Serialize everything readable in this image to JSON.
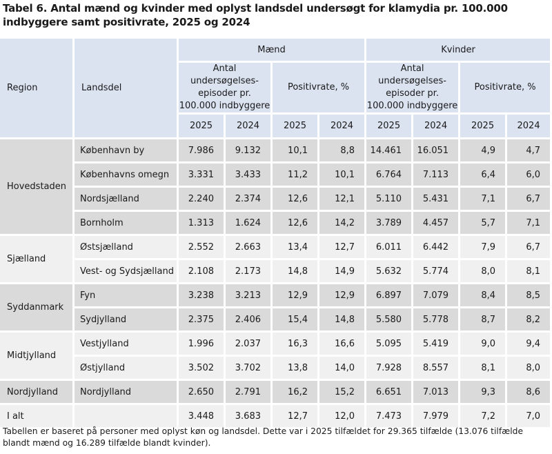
{
  "title": "Tabel 6. Antal mænd og kvinder med oplyst landsdel undersøgt for klamydia pr. 100.000 indbyggere samt positivrate, 2025 og 2024",
  "headers": {
    "region": "Region",
    "landsdel": "Landsdel",
    "maend": "Mænd",
    "kvinder": "Kvinder",
    "antal": "Antal undersøgelses-episoder pr. 100.000 indbyggere",
    "positivrate": "Positivrate, %",
    "y2025": "2025",
    "y2024": "2024"
  },
  "groups": [
    {
      "region": "Hovedstaden",
      "rows": [
        {
          "landsdel": "København by",
          "m_u25": "7.986",
          "m_u24": "9.132",
          "m_p25": "10,1",
          "m_p24": "8,8",
          "k_u25": "14.461",
          "k_u24": "16.051",
          "k_p25": "4,9",
          "k_p24": "4,7"
        },
        {
          "landsdel": "Københavns omegn",
          "m_u25": "3.331",
          "m_u24": "3.433",
          "m_p25": "11,2",
          "m_p24": "10,1",
          "k_u25": "6.764",
          "k_u24": "7.113",
          "k_p25": "6,4",
          "k_p24": "6,0"
        },
        {
          "landsdel": "Nordsjælland",
          "m_u25": "2.240",
          "m_u24": "2.374",
          "m_p25": "12,6",
          "m_p24": "12,1",
          "k_u25": "5.110",
          "k_u24": "5.431",
          "k_p25": "7,1",
          "k_p24": "6,7"
        },
        {
          "landsdel": "Bornholm",
          "m_u25": "1.313",
          "m_u24": "1.624",
          "m_p25": "12,6",
          "m_p24": "14,2",
          "k_u25": "3.789",
          "k_u24": "4.457",
          "k_p25": "5,7",
          "k_p24": "7,1"
        }
      ]
    },
    {
      "region": "Sjælland",
      "rows": [
        {
          "landsdel": "Østsjælland",
          "m_u25": "2.552",
          "m_u24": "2.663",
          "m_p25": "13,4",
          "m_p24": "12,7",
          "k_u25": "6.011",
          "k_u24": "6.442",
          "k_p25": "7,9",
          "k_p24": "6,7"
        },
        {
          "landsdel": "Vest- og Sydsjælland",
          "m_u25": "2.108",
          "m_u24": "2.173",
          "m_p25": "14,8",
          "m_p24": "14,9",
          "k_u25": "5.632",
          "k_u24": "5.774",
          "k_p25": "8,0",
          "k_p24": "8,1"
        }
      ]
    },
    {
      "region": "Syddanmark",
      "rows": [
        {
          "landsdel": "Fyn",
          "m_u25": "3.238",
          "m_u24": "3.213",
          "m_p25": "12,9",
          "m_p24": "12,9",
          "k_u25": "6.897",
          "k_u24": "7.079",
          "k_p25": "8,4",
          "k_p24": "8,5"
        },
        {
          "landsdel": "Sydjylland",
          "m_u25": "2.375",
          "m_u24": "2.406",
          "m_p25": "15,4",
          "m_p24": "14,8",
          "k_u25": "5.580",
          "k_u24": "5.778",
          "k_p25": "8,7",
          "k_p24": "8,2"
        }
      ]
    },
    {
      "region": "Midtjylland",
      "rows": [
        {
          "landsdel": "Vestjylland",
          "m_u25": "1.996",
          "m_u24": "2.037",
          "m_p25": "16,3",
          "m_p24": "16,6",
          "k_u25": "5.095",
          "k_u24": "5.419",
          "k_p25": "9,0",
          "k_p24": "9,4"
        },
        {
          "landsdel": "Østjylland",
          "m_u25": "3.502",
          "m_u24": "3.702",
          "m_p25": "13,8",
          "m_p24": "14,0",
          "k_u25": "7.928",
          "k_u24": "8.557",
          "k_p25": "8,1",
          "k_p24": "8,0"
        }
      ]
    },
    {
      "region": "Nordjylland",
      "rows": [
        {
          "landsdel": "Nordjylland",
          "m_u25": "2.650",
          "m_u24": "2.791",
          "m_p25": "16,2",
          "m_p24": "15,2",
          "k_u25": "6.651",
          "k_u24": "7.013",
          "k_p25": "9,3",
          "k_p24": "8,6"
        }
      ]
    },
    {
      "region": "I alt",
      "rows": [
        {
          "landsdel": "",
          "m_u25": "3.448",
          "m_u24": "3.683",
          "m_p25": "12,7",
          "m_p24": "12,0",
          "k_u25": "7.473",
          "k_u24": "7.979",
          "k_p25": "7,2",
          "k_p24": "7,0"
        }
      ]
    }
  ],
  "note": "Tabellen er baseret på personer med oplyst køn og landsdel. Dette var i 2025 tilfældet for 29.365 tilfælde (13.076 tilfælde blandt mænd og 16.289 tilfælde blandt kvinder).",
  "colors": {
    "header_bg": "#dbe3f1",
    "row_dark": "#dadada",
    "row_light": "#f0f0f0"
  }
}
